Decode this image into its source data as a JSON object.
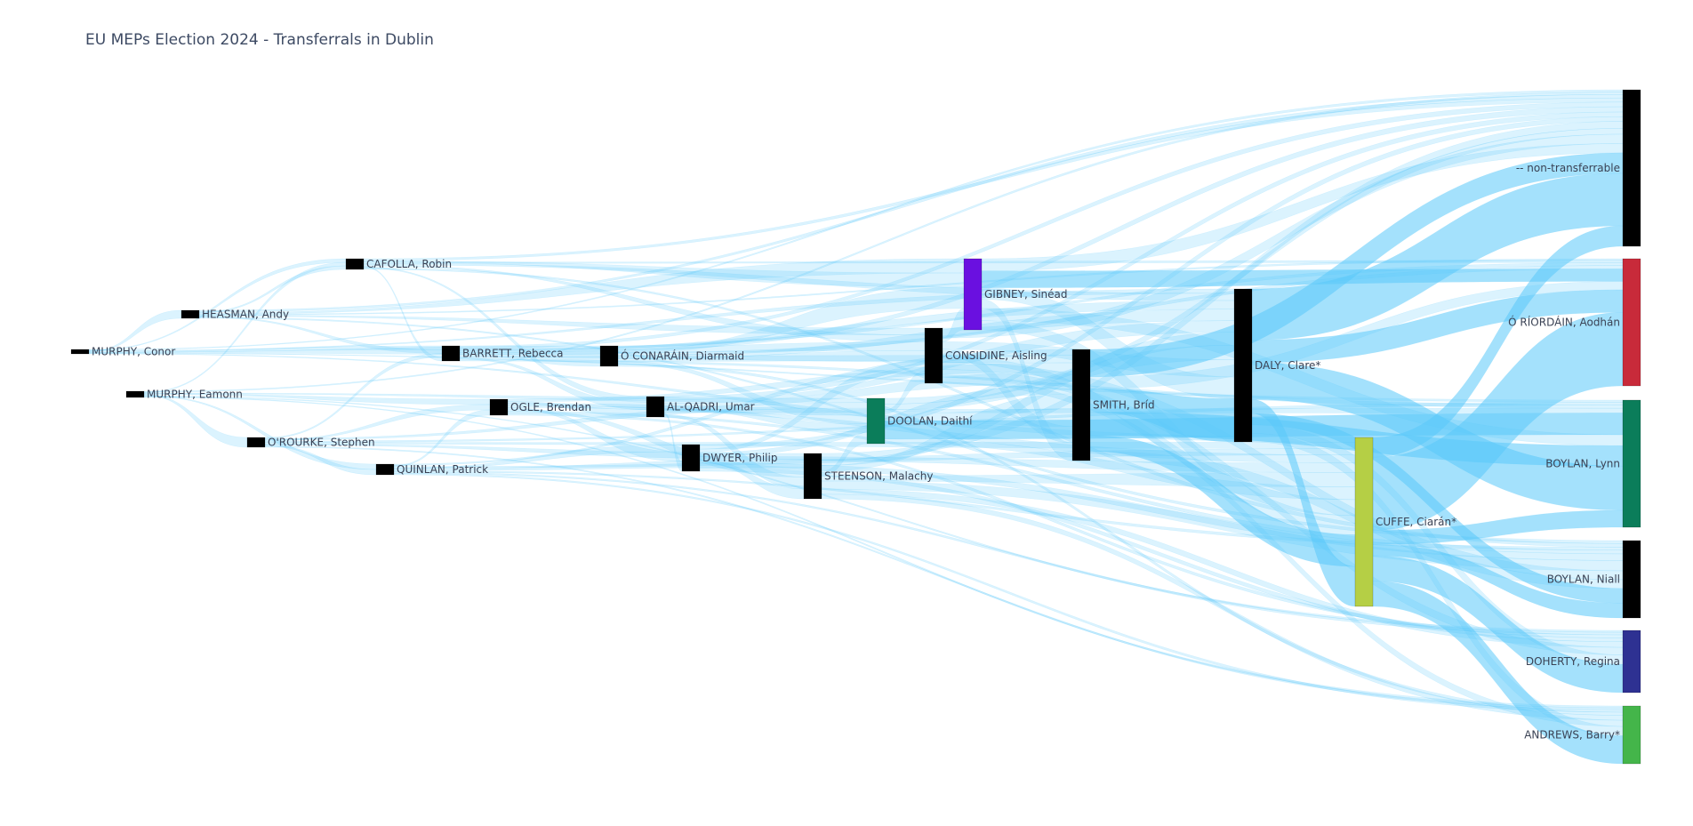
{
  "chart_data": {
    "type": "sankey",
    "title": "EU MEPs Election 2024 - Transferrals in Dublin",
    "link_color": "#5ac8fa",
    "nodes": [
      {
        "id": "murphy_conor",
        "label": "MURPHY, Conor",
        "color": "#000000",
        "column": 0
      },
      {
        "id": "murphy_eamonn",
        "label": "MURPHY, Eamonn",
        "color": "#000000",
        "column": 1
      },
      {
        "id": "heasman",
        "label": "HEASMAN, Andy",
        "color": "#000000",
        "column": 2
      },
      {
        "id": "orourke",
        "label": "O'ROURKE, Stephen",
        "color": "#000000",
        "column": 3
      },
      {
        "id": "cafolla",
        "label": "CAFOLLA, Robin",
        "color": "#000000",
        "column": 4
      },
      {
        "id": "quinlan",
        "label": "QUINLAN, Patrick",
        "color": "#000000",
        "column": 5
      },
      {
        "id": "barrett",
        "label": "BARRETT, Rebecca",
        "color": "#000000",
        "column": 6
      },
      {
        "id": "ogle",
        "label": "OGLE, Brendan",
        "color": "#000000",
        "column": 7
      },
      {
        "id": "oconarain",
        "label": "Ó CONARÁIN, Diarmaid",
        "color": "#000000",
        "column": 8
      },
      {
        "id": "alqadri",
        "label": "AL-QADRI, Umar",
        "color": "#000000",
        "column": 9
      },
      {
        "id": "dwyer",
        "label": "DWYER, Philip",
        "color": "#000000",
        "column": 10
      },
      {
        "id": "steenson",
        "label": "STEENSON, Malachy",
        "color": "#000000",
        "column": 11
      },
      {
        "id": "doolan",
        "label": "DOOLAN, Daithí",
        "color": "#0b7d5a",
        "column": 12
      },
      {
        "id": "considine",
        "label": "CONSIDINE, Aisling",
        "color": "#000000",
        "column": 13
      },
      {
        "id": "gibney",
        "label": "GIBNEY, Sinéad",
        "color": "#6a10e0",
        "column": 14
      },
      {
        "id": "smith",
        "label": "SMITH, Bríd",
        "color": "#000000",
        "column": 15
      },
      {
        "id": "daly",
        "label": "DALY, Clare*",
        "color": "#000000",
        "column": 16
      },
      {
        "id": "cuffe",
        "label": "CUFFE, Ciarán*",
        "color": "#b5cf45",
        "column": 17
      },
      {
        "id": "nontransferable",
        "label": "-- non-transferrable",
        "color": "#000000",
        "column": 18
      },
      {
        "id": "oriordain",
        "label": "Ó RÍORDÁIN, Aodhán",
        "color": "#c82a3a",
        "column": 18
      },
      {
        "id": "boylan_lynn",
        "label": "BOYLAN, Lynn",
        "color": "#0b7d5a",
        "column": 18
      },
      {
        "id": "boylan_niall",
        "label": "BOYLAN, Niall",
        "color": "#000000",
        "column": 18
      },
      {
        "id": "doherty",
        "label": "DOHERTY, Regina",
        "color": "#2e3192",
        "column": 18
      },
      {
        "id": "andrews",
        "label": "ANDREWS, Barry*",
        "color": "#44b54a",
        "column": 18
      }
    ],
    "links": [
      [
        "murphy_conor",
        "heasman",
        0.3
      ],
      [
        "murphy_conor",
        "cafolla",
        0.3
      ],
      [
        "murphy_conor",
        "barrett",
        0.3
      ],
      [
        "murphy_conor",
        "oconarain",
        0.3
      ],
      [
        "murphy_conor",
        "daly",
        0.3
      ],
      [
        "murphy_conor",
        "nontransferable",
        0.4
      ],
      [
        "murphy_conor",
        "boylan_lynn",
        0.3
      ],
      [
        "murphy_conor",
        "cuffe",
        0.3
      ],
      [
        "murphy_eamonn",
        "cafolla",
        0.3
      ],
      [
        "murphy_eamonn",
        "orourke",
        0.3
      ],
      [
        "murphy_eamonn",
        "quinlan",
        0.3
      ],
      [
        "murphy_eamonn",
        "ogle",
        0.3
      ],
      [
        "murphy_eamonn",
        "doolan",
        0.3
      ],
      [
        "murphy_eamonn",
        "andrews",
        0.3
      ],
      [
        "murphy_eamonn",
        "doherty",
        0.3
      ],
      [
        "murphy_eamonn",
        "nontransferable",
        0.4
      ],
      [
        "heasman",
        "cafolla",
        0.3
      ],
      [
        "heasman",
        "barrett",
        0.3
      ],
      [
        "heasman",
        "gibney",
        0.4
      ],
      [
        "heasman",
        "considine",
        0.4
      ],
      [
        "heasman",
        "nontransferable",
        0.6
      ],
      [
        "heasman",
        "boylan_niall",
        0.4
      ],
      [
        "heasman",
        "oriordain",
        0.3
      ],
      [
        "orourke",
        "quinlan",
        0.3
      ],
      [
        "orourke",
        "barrett",
        0.3
      ],
      [
        "orourke",
        "ogle",
        0.3
      ],
      [
        "orourke",
        "steenson",
        0.3
      ],
      [
        "orourke",
        "doolan",
        0.4
      ],
      [
        "orourke",
        "cuffe",
        0.4
      ],
      [
        "orourke",
        "andrews",
        0.3
      ],
      [
        "orourke",
        "boylan_lynn",
        0.4
      ],
      [
        "cafolla",
        "barrett",
        0.3
      ],
      [
        "cafolla",
        "alqadri",
        0.3
      ],
      [
        "cafolla",
        "gibney",
        0.4
      ],
      [
        "cafolla",
        "considine",
        0.4
      ],
      [
        "cafolla",
        "daly",
        0.5
      ],
      [
        "cafolla",
        "nontransferable",
        0.7
      ],
      [
        "cafolla",
        "boylan_niall",
        0.5
      ],
      [
        "cafolla",
        "oriordain",
        0.4
      ],
      [
        "quinlan",
        "ogle",
        0.3
      ],
      [
        "quinlan",
        "dwyer",
        0.3
      ],
      [
        "quinlan",
        "steenson",
        0.4
      ],
      [
        "quinlan",
        "smith",
        0.4
      ],
      [
        "quinlan",
        "cuffe",
        0.4
      ],
      [
        "quinlan",
        "andrews",
        0.4
      ],
      [
        "quinlan",
        "doherty",
        0.4
      ],
      [
        "quinlan",
        "boylan_niall",
        0.4
      ],
      [
        "barrett",
        "oconarain",
        0.4
      ],
      [
        "barrett",
        "alqadri",
        0.4
      ],
      [
        "barrett",
        "considine",
        0.5
      ],
      [
        "barrett",
        "smith",
        0.5
      ],
      [
        "barrett",
        "daly",
        0.6
      ],
      [
        "barrett",
        "nontransferable",
        0.8
      ],
      [
        "barrett",
        "boylan_lynn",
        0.5
      ],
      [
        "barrett",
        "oriordain",
        0.5
      ],
      [
        "ogle",
        "alqadri",
        0.4
      ],
      [
        "ogle",
        "dwyer",
        0.4
      ],
      [
        "ogle",
        "steenson",
        0.5
      ],
      [
        "ogle",
        "doolan",
        0.5
      ],
      [
        "ogle",
        "smith",
        0.6
      ],
      [
        "ogle",
        "cuffe",
        0.5
      ],
      [
        "ogle",
        "boylan_niall",
        0.5
      ],
      [
        "ogle",
        "doherty",
        0.5
      ],
      [
        "oconarain",
        "gibney",
        0.6
      ],
      [
        "oconarain",
        "considine",
        0.6
      ],
      [
        "oconarain",
        "doolan",
        0.6
      ],
      [
        "oconarain",
        "daly",
        0.8
      ],
      [
        "oconarain",
        "nontransferable",
        0.9
      ],
      [
        "oconarain",
        "oriordain",
        0.6
      ],
      [
        "oconarain",
        "andrews",
        0.5
      ],
      [
        "alqadri",
        "dwyer",
        0.4
      ],
      [
        "alqadri",
        "steenson",
        0.6
      ],
      [
        "alqadri",
        "doolan",
        0.6
      ],
      [
        "alqadri",
        "smith",
        0.8
      ],
      [
        "alqadri",
        "daly",
        0.8
      ],
      [
        "alqadri",
        "boylan_lynn",
        0.7
      ],
      [
        "alqadri",
        "nontransferable",
        0.8
      ],
      [
        "dwyer",
        "steenson",
        0.5
      ],
      [
        "dwyer",
        "considine",
        0.6
      ],
      [
        "dwyer",
        "smith",
        0.7
      ],
      [
        "dwyer",
        "cuffe",
        0.6
      ],
      [
        "dwyer",
        "boylan_niall",
        0.9
      ],
      [
        "dwyer",
        "nontransferable",
        0.8
      ],
      [
        "dwyer",
        "doherty",
        0.6
      ],
      [
        "steenson",
        "doolan",
        0.8
      ],
      [
        "steenson",
        "smith",
        1.0
      ],
      [
        "steenson",
        "daly",
        0.9
      ],
      [
        "steenson",
        "cuffe",
        0.9
      ],
      [
        "steenson",
        "boylan_niall",
        1.4
      ],
      [
        "steenson",
        "nontransferable",
        1.2
      ],
      [
        "steenson",
        "andrews",
        0.8
      ],
      [
        "steenson",
        "doherty",
        0.9
      ],
      [
        "doolan",
        "considine",
        0.7
      ],
      [
        "doolan",
        "smith",
        1.2
      ],
      [
        "doolan",
        "daly",
        1.0
      ],
      [
        "doolan",
        "boylan_lynn",
        3.2
      ],
      [
        "doolan",
        "nontransferable",
        1.0
      ],
      [
        "doolan",
        "cuffe",
        0.8
      ],
      [
        "considine",
        "gibney",
        0.6
      ],
      [
        "considine",
        "smith",
        1.1
      ],
      [
        "considine",
        "daly",
        1.2
      ],
      [
        "considine",
        "cuffe",
        1.0
      ],
      [
        "considine",
        "nontransferable",
        1.6
      ],
      [
        "considine",
        "boylan_niall",
        1.2
      ],
      [
        "considine",
        "andrews",
        1.0
      ],
      [
        "considine",
        "doherty",
        1.2
      ],
      [
        "gibney",
        "smith",
        1.2
      ],
      [
        "gibney",
        "daly",
        1.5
      ],
      [
        "gibney",
        "oriordain",
        2.2
      ],
      [
        "gibney",
        "nontransferable",
        1.6
      ],
      [
        "gibney",
        "boylan_lynn",
        1.6
      ],
      [
        "gibney",
        "cuffe",
        1.2
      ],
      [
        "smith",
        "daly",
        3.0
      ],
      [
        "smith",
        "cuffe",
        2.0
      ],
      [
        "smith",
        "boylan_lynn",
        3.0
      ],
      [
        "smith",
        "oriordain",
        1.5
      ],
      [
        "smith",
        "nontransferable",
        3.5
      ],
      [
        "smith",
        "boylan_niall",
        1.2
      ],
      [
        "daly",
        "nontransferable",
        9.0
      ],
      [
        "daly",
        "oriordain",
        4.0
      ],
      [
        "daly",
        "boylan_lynn",
        6.5
      ],
      [
        "daly",
        "cuffe",
        2.5
      ],
      [
        "daly",
        "boylan_niall",
        2.0
      ],
      [
        "daly",
        "doherty",
        1.5
      ],
      [
        "daly",
        "andrews",
        1.5
      ],
      [
        "cuffe",
        "oriordain",
        13.0
      ],
      [
        "cuffe",
        "nontransferable",
        3.5
      ],
      [
        "cuffe",
        "boylan_lynn",
        2.5
      ],
      [
        "cuffe",
        "doherty",
        4.5
      ],
      [
        "cuffe",
        "andrews",
        4.5
      ],
      [
        "cuffe",
        "boylan_niall",
        2.0
      ]
    ]
  }
}
